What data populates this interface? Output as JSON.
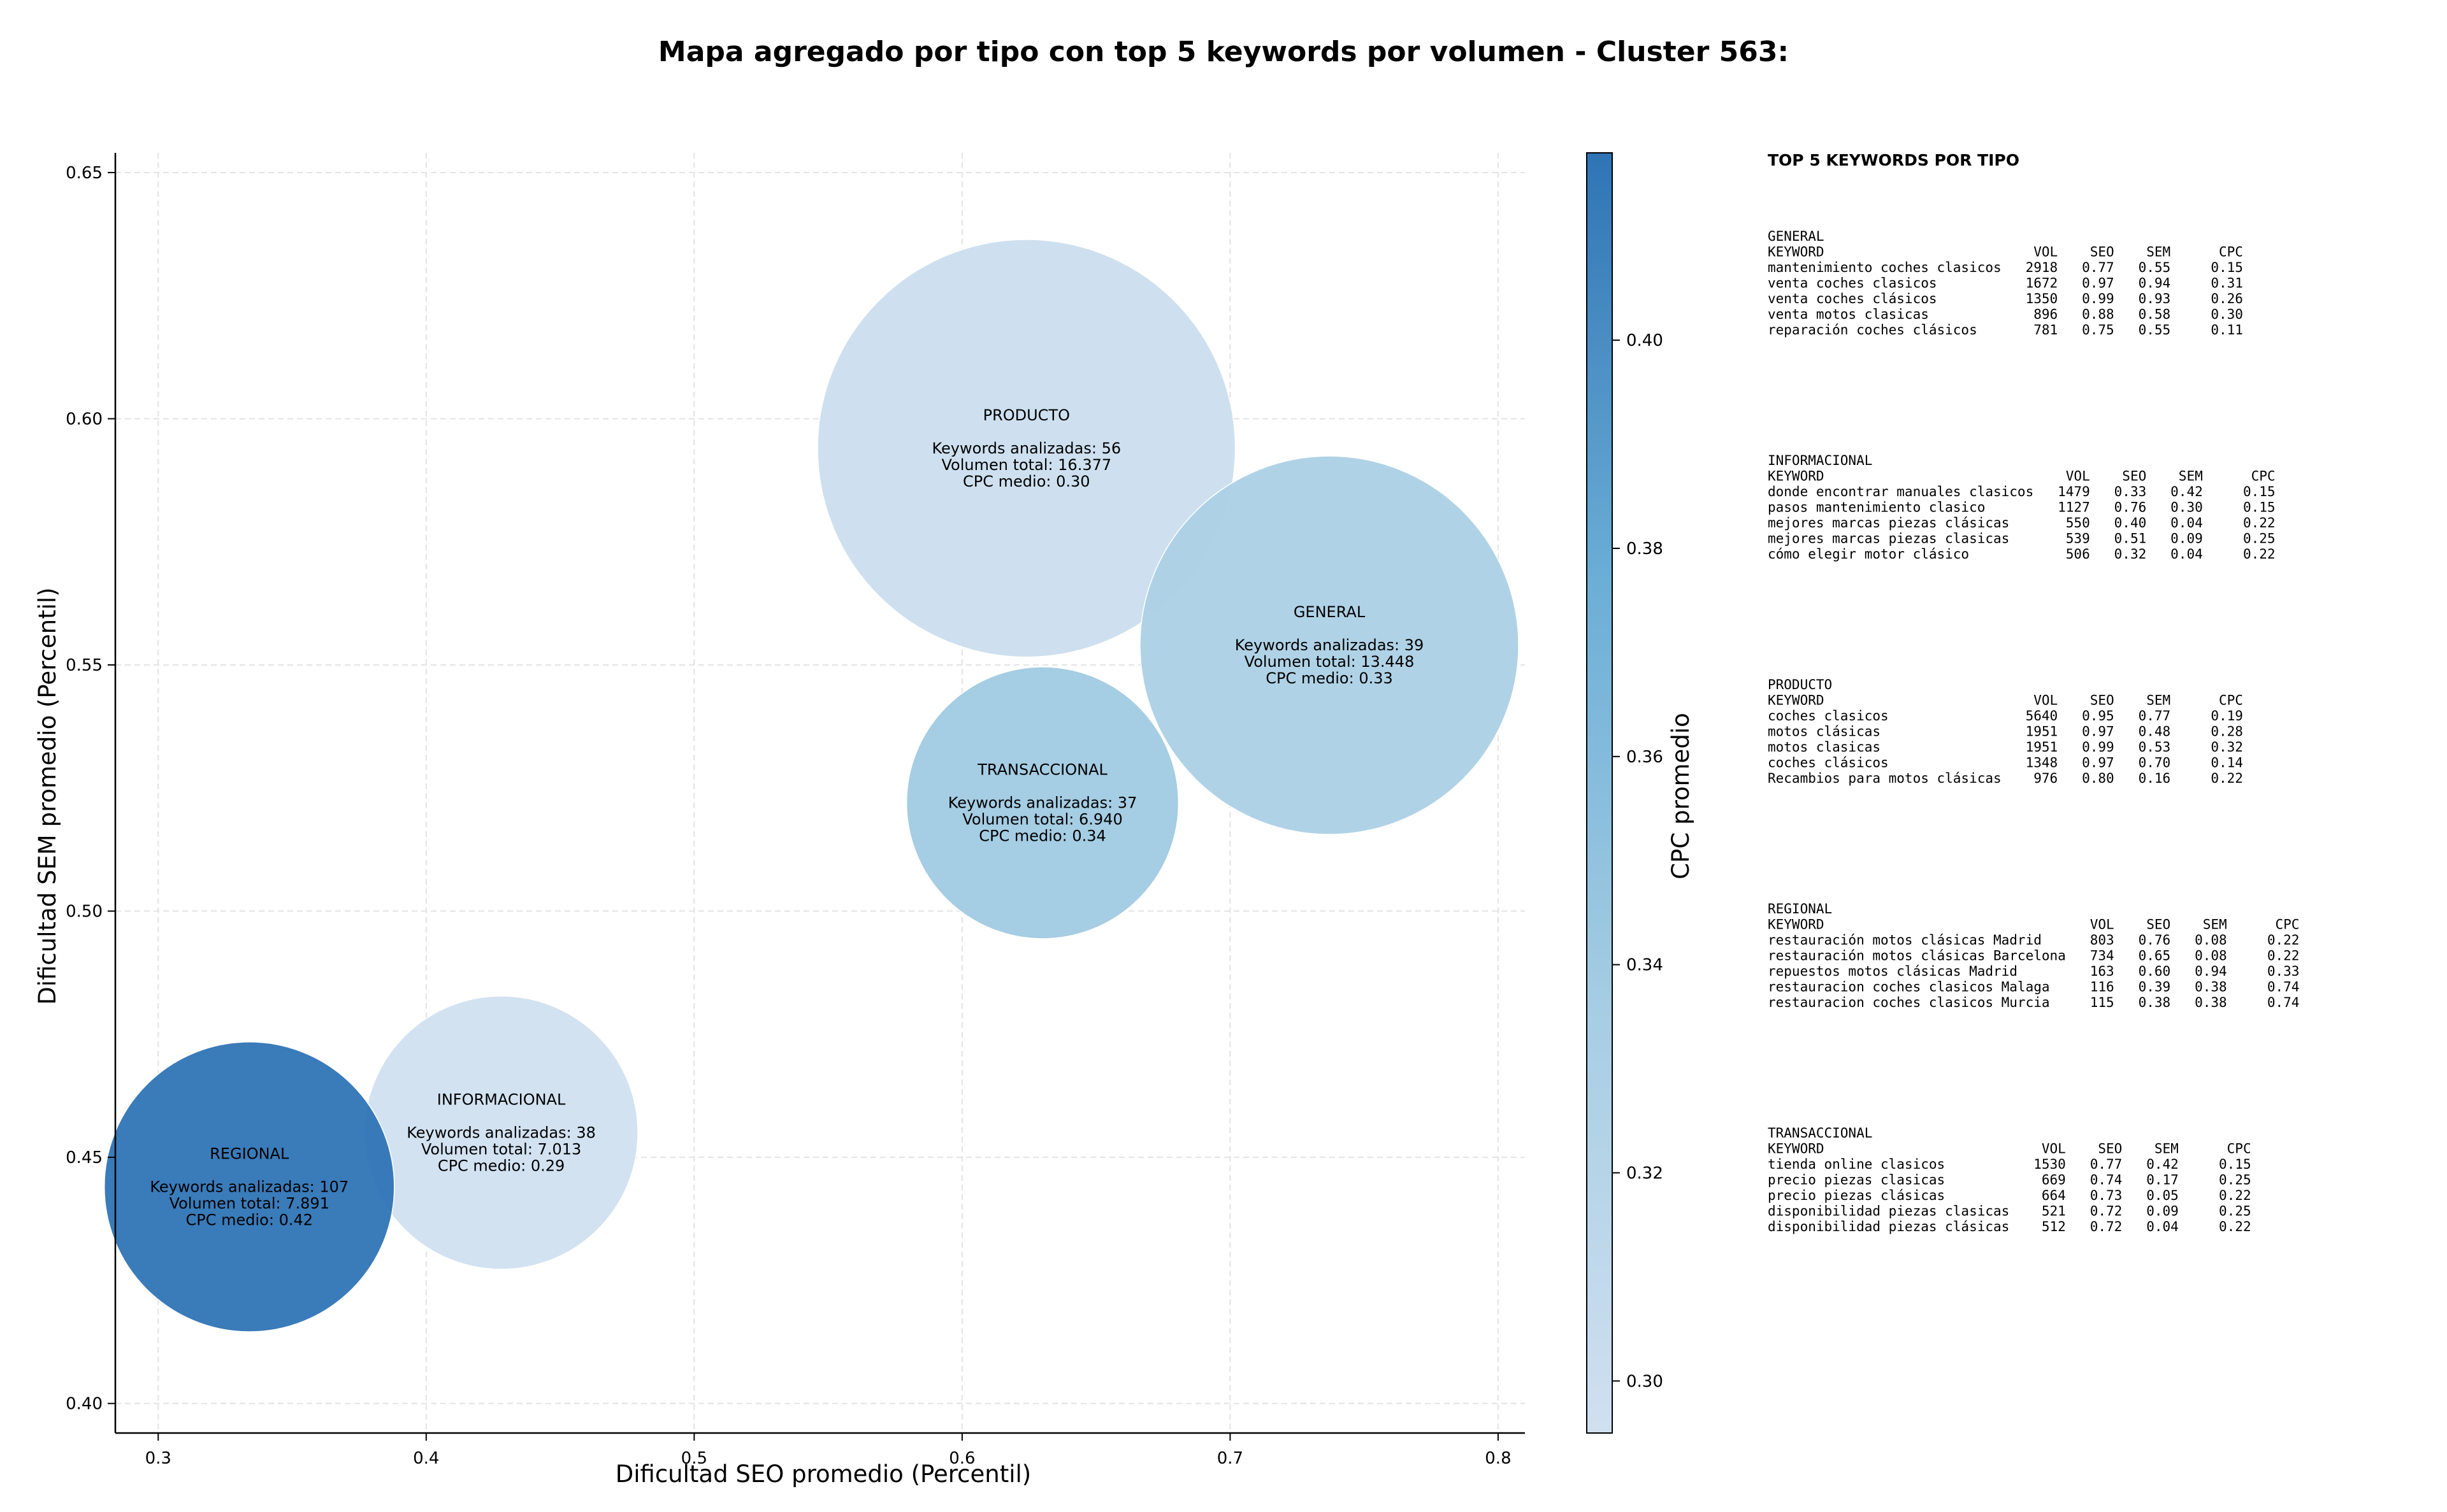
{
  "chart_data": {
    "type": "scatter",
    "title": "Mapa agregado por tipo con top 5 keywords por volumen - Cluster 563:",
    "xlabel": "Dificultad SEO promedio (Percentil)",
    "ylabel": "Dificultad SEM promedio (Percentil)",
    "xlim": [
      0.284,
      0.81
    ],
    "ylim": [
      0.394,
      0.654
    ],
    "xticks": [
      0.3,
      0.4,
      0.5,
      0.6,
      0.7,
      0.8
    ],
    "xtick_labels": [
      "0.3",
      "0.4",
      "0.5",
      "0.6",
      "0.7",
      "0.8"
    ],
    "yticks": [
      0.4,
      0.45,
      0.5,
      0.55,
      0.6,
      0.65
    ],
    "ytick_labels": [
      "0.40",
      "0.45",
      "0.50",
      "0.55",
      "0.60",
      "0.65"
    ],
    "grid": true,
    "colorbar": {
      "label": "CPC promedio",
      "range": [
        0.295,
        0.418
      ],
      "ticks": [
        0.3,
        0.32,
        0.34,
        0.36,
        0.38,
        0.4
      ],
      "tick_labels": [
        "0.30",
        "0.32",
        "0.34",
        "0.36",
        "0.38",
        "0.40"
      ],
      "colormap": [
        "#d0e0f0",
        "#a6cde3",
        "#6baed6",
        "#2f74b5"
      ]
    },
    "points": [
      {
        "name": "PRODUCTO",
        "x": 0.624,
        "y": 0.594,
        "keywords": 56,
        "volume": 16377,
        "cpc": 0.3,
        "lines": [
          "PRODUCTO",
          "",
          "Keywords analizadas: 56",
          "Volumen total: 16.377",
          "CPC medio: 0.30"
        ]
      },
      {
        "name": "GENERAL",
        "x": 0.737,
        "y": 0.554,
        "keywords": 39,
        "volume": 13448,
        "cpc": 0.33,
        "lines": [
          "GENERAL",
          "",
          "Keywords analizadas: 39",
          "Volumen total: 13.448",
          "CPC medio: 0.33"
        ]
      },
      {
        "name": "TRANSACCIONAL",
        "x": 0.63,
        "y": 0.522,
        "keywords": 37,
        "volume": 6940,
        "cpc": 0.34,
        "lines": [
          "TRANSACCIONAL",
          "",
          "Keywords analizadas: 37",
          "Volumen total: 6.940",
          "CPC medio: 0.34"
        ]
      },
      {
        "name": "INFORMACIONAL",
        "x": 0.428,
        "y": 0.455,
        "keywords": 38,
        "volume": 7013,
        "cpc": 0.29,
        "lines": [
          "INFORMACIONAL",
          "",
          "Keywords analizadas: 38",
          "Volumen total: 7.013",
          "CPC medio: 0.29"
        ]
      },
      {
        "name": "REGIONAL",
        "x": 0.334,
        "y": 0.444,
        "keywords": 107,
        "volume": 7891,
        "cpc": 0.42,
        "lines": [
          "REGIONAL",
          "",
          "Keywords analizadas: 107",
          "Volumen total: 7.891",
          "CPC medio: 0.42"
        ]
      }
    ]
  },
  "side_panel": {
    "title": "TOP 5 KEYWORDS POR TIPO",
    "sections": [
      {
        "type": "GENERAL",
        "lines": [
          "KEYWORD                          VOL    SEO    SEM      CPC",
          "mantenimiento coches clasicos   2918   0.77   0.55     0.15",
          "venta coches clasicos           1672   0.97   0.94     0.31",
          "venta coches clásicos           1350   0.99   0.93     0.26",
          "venta motos clasicas             896   0.88   0.58     0.30",
          "reparación coches clásicos       781   0.75   0.55     0.11"
        ]
      },
      {
        "type": "INFORMACIONAL",
        "lines": [
          "KEYWORD                              VOL    SEO    SEM      CPC",
          "donde encontrar manuales clasicos   1479   0.33   0.42     0.15",
          "pasos mantenimiento clasico         1127   0.76   0.30     0.15",
          "mejores marcas piezas clásicas       550   0.40   0.04     0.22",
          "mejores marcas piezas clasicas       539   0.51   0.09     0.25",
          "cómo elegir motor clásico            506   0.32   0.04     0.22"
        ]
      },
      {
        "type": "PRODUCTO",
        "lines": [
          "KEYWORD                          VOL    SEO    SEM      CPC",
          "coches clasicos                 5640   0.95   0.77     0.19",
          "motos clásicas                  1951   0.97   0.48     0.28",
          "motos clasicas                  1951   0.99   0.53     0.32",
          "coches clásicos                 1348   0.97   0.70     0.14",
          "Recambios para motos clásicas    976   0.80   0.16     0.22"
        ]
      },
      {
        "type": "REGIONAL",
        "lines": [
          "KEYWORD                                 VOL    SEO    SEM      CPC",
          "restauración motos clásicas Madrid      803   0.76   0.08     0.22",
          "restauración motos clásicas Barcelona   734   0.65   0.08     0.22",
          "repuestos motos clásicas Madrid         163   0.60   0.94     0.33",
          "restauracion coches clasicos Malaga     116   0.39   0.38     0.74",
          "restauracion coches clasicos Murcia     115   0.38   0.38     0.74"
        ]
      },
      {
        "type": "TRANSACCIONAL",
        "lines": [
          "KEYWORD                           VOL    SEO    SEM      CPC",
          "tienda online clasicos           1530   0.77   0.42     0.15",
          "precio piezas clasicas            669   0.74   0.17     0.25",
          "precio piezas clásicas            664   0.73   0.05     0.22",
          "disponibilidad piezas clasicas    521   0.72   0.09     0.25",
          "disponibilidad piezas clásicas    512   0.72   0.04     0.22"
        ]
      }
    ]
  }
}
